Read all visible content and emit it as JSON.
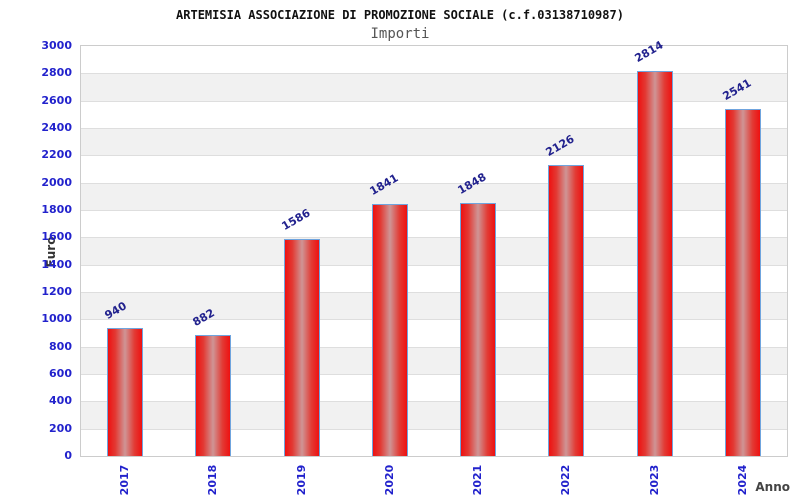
{
  "header": {
    "title": "ARTEMISIA ASSOCIAZIONE DI PROMOZIONE SOCIALE (c.f.03138710987)",
    "subtitle": "Importi"
  },
  "chart_data": {
    "type": "bar",
    "title": "ARTEMISIA ASSOCIAZIONE DI PROMOZIONE SOCIALE (c.f.03138710987)",
    "subtitle": "Importi",
    "categories": [
      "2017",
      "2018",
      "2019",
      "2020",
      "2021",
      "2022",
      "2023",
      "2024"
    ],
    "values": [
      940,
      882,
      1586,
      1841,
      1848,
      2126,
      2814,
      2541
    ],
    "xlabel": "Anno",
    "ylabel": "Euro",
    "ylim": [
      0,
      3000
    ],
    "ytick_step": 200,
    "legend_position": "none",
    "grid": "horizontal-bands-every-200",
    "colors": {
      "bar_edge_red": "#ee1111",
      "bar_center_highlight": "#cf9595",
      "bar_border_blue": "#6fa4de",
      "axis_tick_blue": "#2222cc",
      "value_label_navy": "#22228e",
      "band_gray": "#f1f1f1",
      "plot_border_gray": "#cccccc",
      "gridline_gray": "#dedede"
    }
  }
}
